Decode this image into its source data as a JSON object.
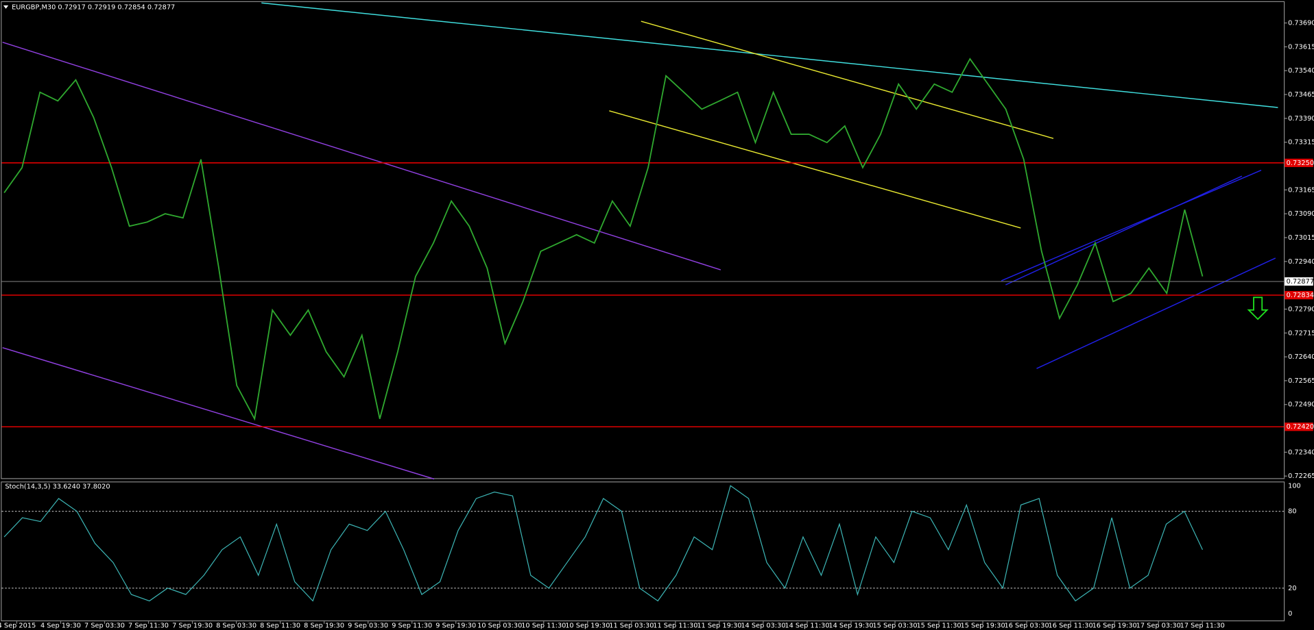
{
  "header": {
    "symbol_info": "EURGBP,M30  0.72917 0.72919 0.72854 0.72877"
  },
  "price_axis": {
    "ylim": [
      0.72265,
      0.7369
    ],
    "ticks": [
      {
        "value": 0.7369,
        "label": "0.73690"
      },
      {
        "value": 0.73615,
        "label": "0.73615"
      },
      {
        "value": 0.7354,
        "label": "0.73540"
      },
      {
        "value": 0.73465,
        "label": "0.73465"
      },
      {
        "value": 0.7339,
        "label": "0.73390"
      },
      {
        "value": 0.73315,
        "label": "0.73315"
      },
      {
        "value": 0.73165,
        "label": "0.73165"
      },
      {
        "value": 0.7309,
        "label": "0.73090"
      },
      {
        "value": 0.73015,
        "label": "0.73015"
      },
      {
        "value": 0.7294,
        "label": "0.72940"
      },
      {
        "value": 0.7279,
        "label": "0.72790"
      },
      {
        "value": 0.72715,
        "label": "0.72715"
      },
      {
        "value": 0.7264,
        "label": "0.72640"
      },
      {
        "value": 0.72565,
        "label": "0.72565"
      },
      {
        "value": 0.7249,
        "label": "0.72490"
      },
      {
        "value": 0.7234,
        "label": "0.72340"
      },
      {
        "value": 0.72265,
        "label": "0.72265"
      }
    ],
    "levels": [
      {
        "value": 0.7325,
        "label": "0.73250",
        "color": "#e00000"
      },
      {
        "value": 0.72834,
        "label": "0.72834",
        "color": "#e00000"
      },
      {
        "value": 0.7242,
        "label": "0.72420",
        "color": "#e00000"
      }
    ],
    "current": {
      "value": 0.72877,
      "label": "0.72877"
    }
  },
  "time_axis": {
    "labels": [
      "4 Sep 2015",
      "4 Sep 19:30",
      "7 Sep 03:30",
      "7 Sep 11:30",
      "7 Sep 19:30",
      "8 Sep 03:30",
      "8 Sep 11:30",
      "8 Sep 19:30",
      "9 Sep 03:30",
      "9 Sep 11:30",
      "9 Sep 19:30",
      "10 Sep 03:30",
      "10 Sep 11:30",
      "10 Sep 19:30",
      "11 Sep 03:30",
      "11 Sep 11:30",
      "11 Sep 19:30",
      "14 Sep 03:30",
      "14 Sep 11:30",
      "14 Sep 19:30",
      "15 Sep 03:30",
      "15 Sep 11:30",
      "15 Sep 19:30",
      "16 Sep 03:30",
      "16 Sep 11:30",
      "16 Sep 19:30",
      "17 Sep 03:30",
      "17 Sep 11:30"
    ]
  },
  "price_series": {
    "color": "#2fa82f",
    "values": [
      0.73156,
      0.73235,
      0.73472,
      0.73445,
      0.73511,
      0.73393,
      0.73235,
      0.73051,
      0.73064,
      0.7309,
      0.73077,
      0.73261,
      0.72919,
      0.7255,
      0.72445,
      0.72787,
      0.72708,
      0.72787,
      0.72656,
      0.72577,
      0.72708,
      0.72445,
      0.72656,
      0.72893,
      0.72998,
      0.7313,
      0.73051,
      0.72919,
      0.72682,
      0.72814,
      0.72972,
      0.72998,
      0.73024,
      0.72998,
      0.7313,
      0.73051,
      0.73235,
      0.73524,
      0.73472,
      0.73419,
      0.73445,
      0.73472,
      0.73314,
      0.73472,
      0.7334,
      0.7334,
      0.73314,
      0.73366,
      0.73235,
      0.7334,
      0.73498,
      0.73419,
      0.73498,
      0.73472,
      0.73577,
      0.73498,
      0.73419,
      0.73261,
      0.72972,
      0.72761,
      0.72866,
      0.72998,
      0.72814,
      0.7284,
      0.72919,
      0.7284,
      0.73103,
      0.72893
    ]
  },
  "stochastic": {
    "title": "Stoch(14,3,5) 33.6240 37.8020",
    "ylim": [
      0,
      100
    ],
    "ticks": [
      100,
      80,
      20,
      0
    ],
    "color": "#3cb4b4",
    "values": [
      60,
      75,
      72,
      90,
      80,
      55,
      40,
      15,
      10,
      20,
      15,
      30,
      50,
      60,
      30,
      70,
      25,
      10,
      50,
      70,
      65,
      80,
      50,
      15,
      25,
      65,
      90,
      95,
      92,
      30,
      20,
      40,
      60,
      90,
      80,
      20,
      10,
      30,
      60,
      50,
      100,
      90,
      40,
      20,
      60,
      30,
      70,
      15,
      60,
      40,
      80,
      75,
      50,
      85,
      40,
      20,
      85,
      90,
      30,
      10,
      20,
      75,
      20,
      30,
      70,
      80,
      50
    ]
  }
}
